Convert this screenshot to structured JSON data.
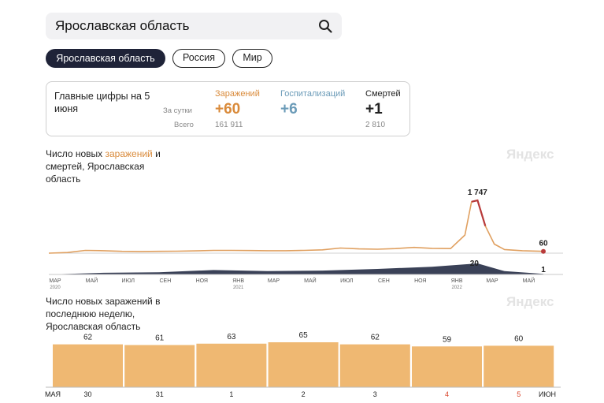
{
  "search": {
    "value": "Ярославская область"
  },
  "tabs": [
    {
      "label": "Ярославская область",
      "active": true
    },
    {
      "label": "Россия",
      "active": false
    },
    {
      "label": "Мир",
      "active": false
    }
  ],
  "summary": {
    "title": "Главные цифры на 5 июня",
    "row_day": "За сутки",
    "row_total": "Всего",
    "infections": {
      "label": "Заражений",
      "day": "+60",
      "total": "161 911",
      "color": "#d98a3a"
    },
    "hospital": {
      "label": "Госпитализаций",
      "day": "+6",
      "color": "#6b9bb8"
    },
    "deaths": {
      "label": "Смертей",
      "day": "+1",
      "total": "2 810",
      "color": "#222222"
    }
  },
  "watermark": "Яндекс",
  "colors": {
    "infections_line": "#e0a060",
    "peak_marker": "#b83a3a",
    "deaths_bars": "#3a4157",
    "bar_fill": "#efb872"
  },
  "chart_data": [
    {
      "type": "line",
      "title_prefix": "Число новых ",
      "title_highlight": "заражений",
      "title_suffix": " и смертей, Ярославская область",
      "x_ticks": [
        {
          "label": "МАР",
          "sub": "2020"
        },
        {
          "label": "МАЙ",
          "sub": ""
        },
        {
          "label": "ИЮЛ",
          "sub": ""
        },
        {
          "label": "СЕН",
          "sub": ""
        },
        {
          "label": "НОЯ",
          "sub": ""
        },
        {
          "label": "ЯНВ",
          "sub": "2021"
        },
        {
          "label": "МАР",
          "sub": ""
        },
        {
          "label": "МАЙ",
          "sub": ""
        },
        {
          "label": "ИЮЛ",
          "sub": ""
        },
        {
          "label": "СЕН",
          "sub": ""
        },
        {
          "label": "НОЯ",
          "sub": ""
        },
        {
          "label": "ЯНВ",
          "sub": "2022"
        },
        {
          "label": "МАР",
          "sub": ""
        },
        {
          "label": "МАЙ",
          "sub": ""
        }
      ],
      "series": [
        {
          "name": "заражений",
          "x": [
            "2020-03",
            "2020-04",
            "2020-05",
            "2020-06",
            "2020-07",
            "2020-08",
            "2020-09",
            "2020-10",
            "2020-11",
            "2020-12",
            "2021-01",
            "2021-02",
            "2021-03",
            "2021-04",
            "2021-05",
            "2021-06",
            "2021-07",
            "2021-08",
            "2021-09",
            "2021-10",
            "2021-11",
            "2021-12",
            "2022-01",
            "2022-01-25",
            "2022-02-05",
            "2022-02-15",
            "2022-02-28",
            "2022-03-15",
            "2022-04",
            "2022-05",
            "2022-06-05"
          ],
          "values": [
            0,
            20,
            90,
            80,
            60,
            55,
            60,
            65,
            75,
            90,
            90,
            85,
            80,
            80,
            90,
            110,
            170,
            140,
            130,
            150,
            190,
            160,
            150,
            600,
            1700,
            1747,
            900,
            300,
            120,
            80,
            60
          ]
        },
        {
          "name": "смертей",
          "x": [
            "2020-03",
            "2020-06",
            "2020-09",
            "2020-12",
            "2021-03",
            "2021-06",
            "2021-09",
            "2021-12",
            "2022-02-15",
            "2022-04",
            "2022-06-05"
          ],
          "values": [
            0,
            3,
            4,
            8,
            6,
            7,
            10,
            14,
            20,
            6,
            1
          ]
        }
      ],
      "labels": {
        "peak": "1 747",
        "last_infections": "60",
        "peak_deaths": "20",
        "last_deaths": "1"
      }
    },
    {
      "type": "bar",
      "title": "Число новых заражений в последнюю неделю, Ярославская область",
      "month_start": "МАЯ",
      "month_end": "ИЮН",
      "categories": [
        "30",
        "31",
        "1",
        "2",
        "3",
        "4",
        "5"
      ],
      "weekend": [
        false,
        false,
        false,
        false,
        false,
        true,
        true
      ],
      "values": [
        62,
        61,
        63,
        65,
        62,
        59,
        60
      ]
    }
  ]
}
